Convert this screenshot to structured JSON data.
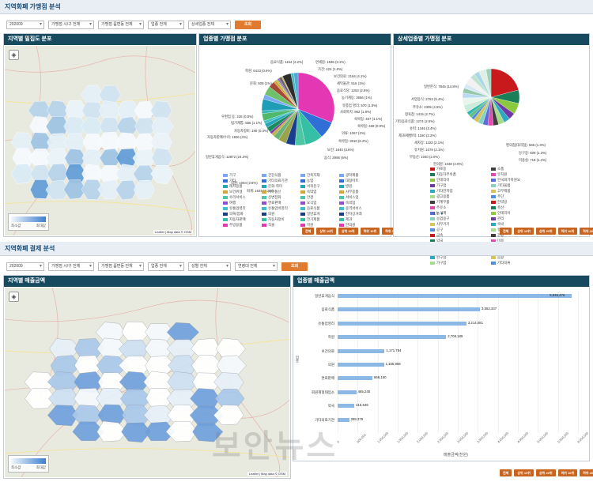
{
  "section1": {
    "title": "지역화폐 가맹점 분석",
    "filters": [
      "202009",
      "가맹점 시/구 전체",
      "가맹점 읍면동 전체",
      "업종 전체",
      "상세업종 전체"
    ],
    "search_label": "조회"
  },
  "panel_map1": {
    "title": "지역별 밀집도 분포",
    "legend_low": "최소값",
    "legend_high": "최대값",
    "attribution": "Leaflet | Map data © OSM"
  },
  "panel_pie1": {
    "title": "업종별 가맹점 분포",
    "slice_labels": [
      "음료식품: 1154 (2.2%)",
      "면세점: 1536 (3.1%)",
      "가전: 424 (1.6%)",
      "문화: 508 (1%)",
      "학원: 6423 (0.6%)",
      "보건의료: 2164 (4.1%)",
      "우편업 등: 226 (0.5%)",
      "세탁물관: 516 (1%)",
      "법기계통: 566 (1.1%)",
      "음료식당: 1263 (2.6%)",
      "자동차정비: 190 (0.4%)",
      "농기계등: 3656 (1%)",
      "자동차판매/수리: 1506 (3%)",
      "유통업 영리: 570 (1.5%)",
      "사회복지: 962 (1.8%)",
      "일반휴게음식: 12872 (24.3%)",
      "숙박업: 467 (1.1%)",
      "숙박업: 469 (0.9%)",
      "의류: 1067 (2%)",
      "숙박업: 3010 (6.2%)",
      "의원: 1084 (2.8%)",
      "보건: 1840 (3.6%)",
      "회계: 1645 (3.2%)",
      "음식: 2995 (6%)"
    ],
    "legend": [
      "가구",
      "기타",
      "레저용품",
      "보건위생",
      "수리서비스",
      "여행",
      "유통업영리",
      "의복/잡화",
      "자동차판매",
      "주방용품",
      "건강식품",
      "기타의료기관",
      "문화·취미",
      "사무통신",
      "신변잡화",
      "연료판매",
      "유통업비영리",
      "의원",
      "자동차정비",
      "직물",
      "건축자재",
      "농업",
      "서적문구",
      "숙박업",
      "안경",
      "요식업",
      "음료식품",
      "일반휴게",
      "전기제품",
      "학원",
      "광학제품",
      "대형마트",
      "병원",
      "사무용품",
      "서비스업",
      "숙박업",
      "용역서비스",
      "전자상거래",
      "제과",
      "한의원"
    ],
    "buttons": [
      "전체",
      "상위 10위",
      "상위 20위",
      "하위 10위",
      "하위 20위"
    ]
  },
  "panel_pie2": {
    "title": "상세업종별 가맹점 분포",
    "slice_labels": [
      "일반한식: 7845 (14.8%)",
      "서양음식: 2763 (5.4%)",
      "주유소: 2305 (4.5%)",
      "정육점: 1415 (2.7%)",
      "기타음료식품: 1274 (2.5%)",
      "슈퍼: 1346 (2.4%)",
      "제과/제빵/떡: 1160 (2.2%)",
      "세차장: 1103 (2.1%)",
      "유치원: 1079 (2.1%)",
      "부동산: 1040 (2.0%)",
      "한의원: 1038 (2.0%)",
      "편의점(대리점): 666 (1.3%)",
      "당구장: 609 (1.3%)",
      "미용실: 718 (1.4%)"
    ],
    "legend": [
      "가로등",
      "자동차부속품",
      "인테리어",
      "가구점",
      "기타전자업",
      "광고용품",
      "기계부품",
      "주유소",
      "농기계",
      "농업용구",
      "사무기기",
      "공구",
      "금속",
      "약국",
      "운동용품",
      "조명기기",
      "완구점",
      "가구점",
      "소품",
      "유치원",
      "한국화가학원요",
      "기타물품",
      "고무제품",
      "주단",
      "한약방",
      "축산",
      "인테리어",
      "관리",
      "숙박",
      "유가공",
      "관광",
      "미용",
      "세차장",
      "기타물품",
      "음향",
      "기타의류",
      "어린이",
      "식당",
      "자동차",
      "운동"
    ],
    "page": "1/7",
    "buttons": [
      "전체",
      "상위 10위",
      "상위 20위",
      "하위 10위",
      "하위 20위"
    ]
  },
  "section2": {
    "title": "지역화폐 결제 분석",
    "filters": [
      "202009",
      "가맹점 시/구 전체",
      "가맹점 읍면동 전체",
      "업종 전체",
      "성별 전체",
      "연령대 전체"
    ],
    "search_label": "조회"
  },
  "panel_map2": {
    "title": "지역별 매출금액",
    "legend_low": "최소값",
    "legend_high": "최대값",
    "attribution": "Leaflet | Map data © OSM"
  },
  "panel_bar": {
    "title": "업종별 매출금액",
    "buttons": [
      "전체",
      "상위 10위",
      "상위 20위",
      "하위 10위",
      "하위 20위"
    ]
  },
  "chart_data": {
    "type": "bar",
    "orientation": "horizontal",
    "categories": [
      "일반휴게음식",
      "음료식품",
      "유통업영리",
      "학원",
      "보건의료",
      "의원",
      "연료판매",
      "회원제형태업소",
      "약국",
      "기타의료기관"
    ],
    "values": [
      5846476,
      3552337,
      3214061,
      2708189,
      1171784,
      1155958,
      868150,
      465245,
      416549,
      289379
    ],
    "value_labels": [
      "5,846,476",
      "3,552,337",
      "3,214,061",
      "2,708,189",
      "1,171,784",
      "1,155,958",
      "868,150",
      "465,245",
      "416,549",
      "289,379"
    ],
    "ylabel": "업종",
    "xlabel": "매출금액(천원)",
    "xlim": [
      0,
      6000000
    ],
    "xticks": [
      "0",
      "500,000",
      "1,000,000",
      "1,500,000",
      "2,000,000",
      "2,500,000",
      "3,000,000",
      "3,500,000",
      "4,000,000",
      "4,500,000",
      "5,000,000",
      "5,500,000",
      "6,000,000"
    ],
    "color": "#8cb8e6",
    "grid": true
  },
  "watermark": "보안뉴스",
  "colors": {
    "header_bar": "#184a5f",
    "accent_button": "#e07a2e"
  }
}
